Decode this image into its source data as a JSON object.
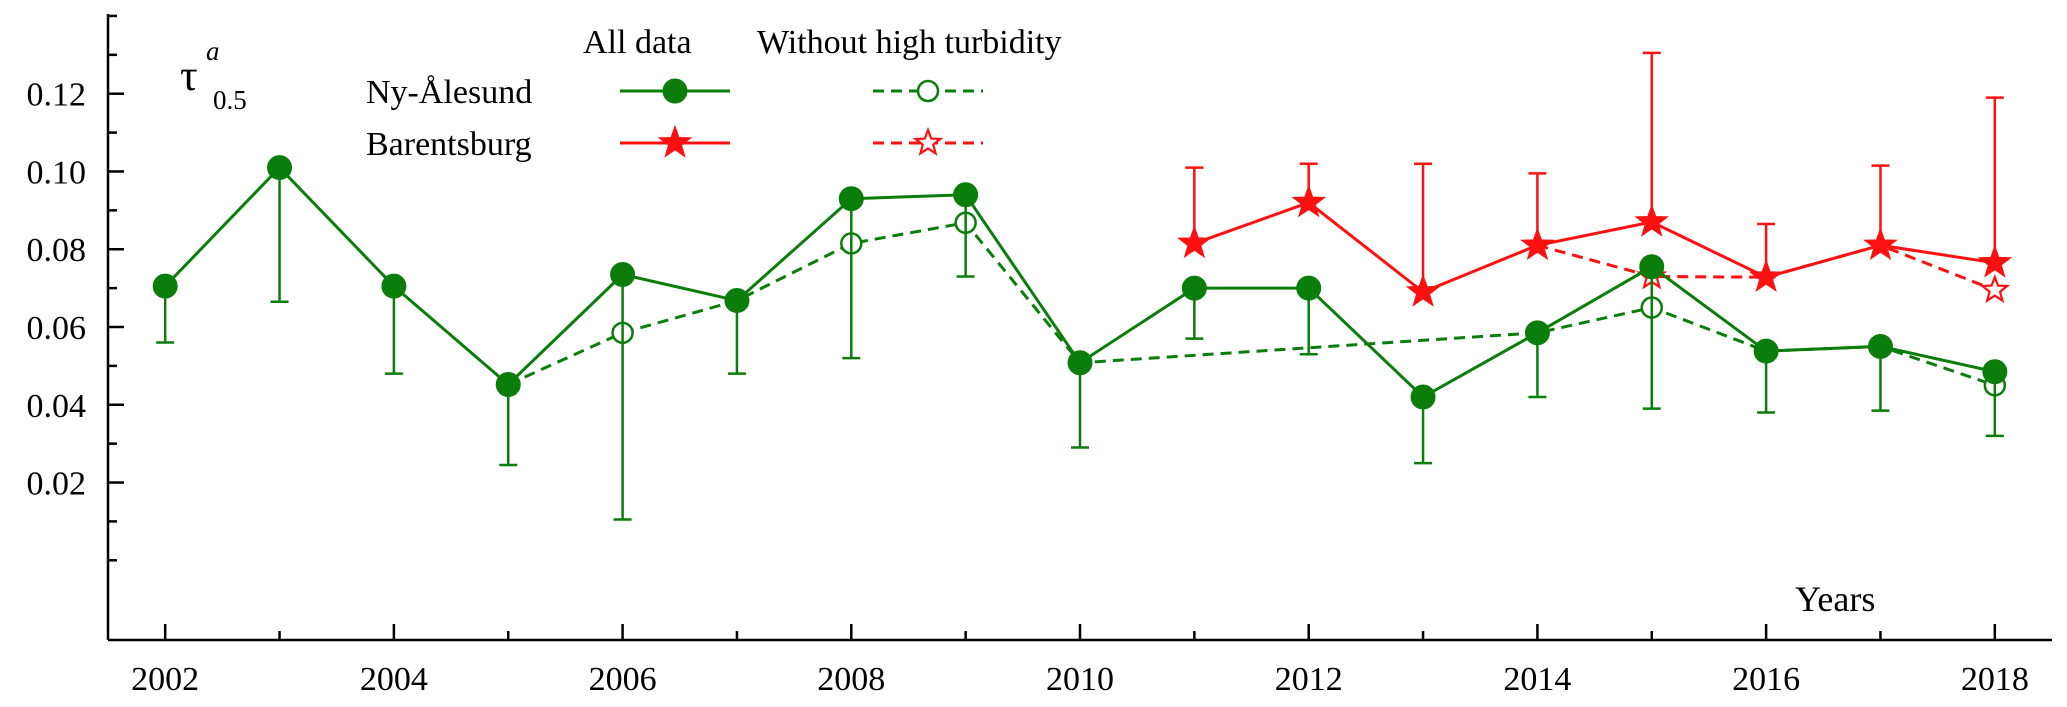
{
  "chart_data": {
    "type": "line",
    "xlabel": "Years",
    "ylabel_symbol": "τ",
    "ylabel_superscript": "a",
    "ylabel_subscript": "0.5",
    "xlim": [
      2001.5,
      2018.5
    ],
    "ylim": [
      -0.0205,
      0.1405
    ],
    "x_ticks": [
      2002,
      2004,
      2006,
      2008,
      2010,
      2012,
      2014,
      2016,
      2018
    ],
    "x_tick_labels": [
      "2002",
      "2004",
      "2006",
      "2008",
      "2010",
      "2012",
      "2014",
      "2016",
      "2018"
    ],
    "y_ticks": [
      0.02,
      0.04,
      0.06,
      0.08,
      0.1,
      0.12
    ],
    "y_tick_labels": [
      "0.02",
      "0.04",
      "0.06",
      "0.08",
      "0.10",
      "0.12"
    ],
    "grid": false,
    "legend": {
      "placement": "top-center",
      "column_headers": [
        "All data",
        "Without high turbidity"
      ],
      "rows": [
        "Ny-Ålesund",
        "Barentsburg"
      ]
    },
    "series": [
      {
        "name": "Ny-Ålesund",
        "variant": "All data",
        "color": "#0a7d0a",
        "marker": "filled-circle",
        "line": "solid",
        "x": [
          2002,
          2003,
          2004,
          2005,
          2006,
          2007,
          2008,
          2009,
          2010,
          2011,
          2012,
          2013,
          2014,
          2015,
          2016,
          2017,
          2018
        ],
        "y": [
          0.0705,
          0.101,
          0.0705,
          0.0452,
          0.0735,
          0.0668,
          0.093,
          0.094,
          0.0508,
          0.07,
          0.07,
          0.042,
          0.0585,
          0.0755,
          0.0538,
          0.055,
          0.0485
        ],
        "error_low": [
          0.056,
          0.0665,
          0.048,
          0.0245,
          0.0105,
          0.048,
          0.052,
          0.073,
          0.029,
          0.057,
          0.053,
          0.025,
          0.042,
          0.039,
          0.038,
          0.0385,
          0.032
        ]
      },
      {
        "name": "Ny-Ålesund",
        "variant": "Without high turbidity",
        "color": "#0a7d0a",
        "marker": "open-circle",
        "line": "dashed",
        "x": [
          2005,
          2006,
          2007,
          2008,
          2009,
          2010,
          2014,
          2015,
          2016,
          2017,
          2018
        ],
        "y": [
          0.0452,
          0.0585,
          0.0668,
          0.0815,
          0.0868,
          0.0508,
          0.0585,
          0.065,
          0.0538,
          0.055,
          0.045
        ]
      },
      {
        "name": "Barentsburg",
        "variant": "All data",
        "color": "#ff1010",
        "marker": "filled-star",
        "line": "solid",
        "x": [
          2011,
          2012,
          2013,
          2014,
          2015,
          2016,
          2017,
          2018
        ],
        "y": [
          0.0815,
          0.092,
          0.069,
          0.081,
          0.087,
          0.0728,
          0.081,
          0.0765
        ],
        "error_high": [
          0.101,
          0.102,
          0.102,
          0.0995,
          0.1305,
          0.0865,
          0.1015,
          0.119
        ]
      },
      {
        "name": "Barentsburg",
        "variant": "Without high turbidity",
        "color": "#ff1010",
        "marker": "open-star",
        "line": "dashed",
        "x": [
          2014,
          2015,
          2016,
          2017,
          2018
        ],
        "y": [
          0.081,
          0.073,
          0.0728,
          0.081,
          0.0695
        ]
      }
    ]
  }
}
